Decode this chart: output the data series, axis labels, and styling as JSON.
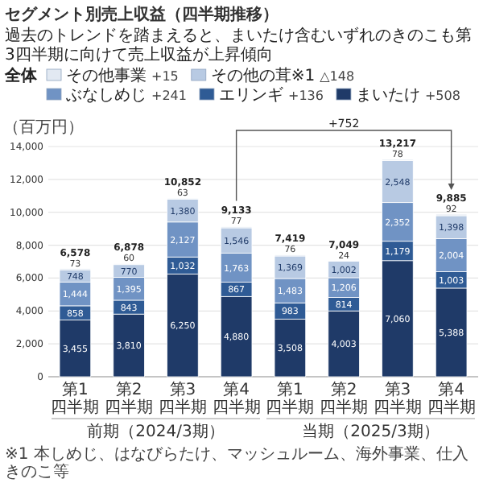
{
  "chart_data": {
    "type": "bar",
    "stacked": true,
    "title": "セグメント別売上収益（四半期推移）",
    "subtitle": "過去のトレンドを踏まえると、まいたけ含むいずれのきのこも第3四半期に向けて売上収益が上昇傾向",
    "ylabel": "（百万円）",
    "legend_title": "全体",
    "categories": [
      "第1四半期",
      "第2四半期",
      "第3四半期",
      "第4四半期",
      "第1四半期",
      "第2四半期",
      "第3四半期",
      "第4四半期"
    ],
    "series": [
      {
        "name": "まいたけ",
        "color": "#1f3a68",
        "values": [
          3455,
          3810,
          6250,
          4880,
          3508,
          4003,
          7060,
          5388
        ],
        "value_labels": [
          "3,455",
          "3,810",
          "6,250",
          "4,880",
          "3,508",
          "4,003",
          "7,060",
          "5,388"
        ]
      },
      {
        "name": "エリンギ",
        "color": "#2f5b95",
        "values": [
          858,
          843,
          1032,
          867,
          983,
          814,
          1179,
          1003
        ],
        "value_labels": [
          "858",
          "843",
          "1,032",
          "867",
          "983",
          "814",
          "1,179",
          "1,003"
        ]
      },
      {
        "name": "ぶなしめじ",
        "color": "#7093c4",
        "values": [
          1444,
          1395,
          2127,
          1763,
          1483,
          1206,
          2352,
          2004
        ],
        "value_labels": [
          "1,444",
          "1,395",
          "2,127",
          "1,763",
          "1,483",
          "1,206",
          "2,352",
          "2,004"
        ]
      },
      {
        "name": "その他の茸※1",
        "color": "#b8cae3",
        "values": [
          748,
          770,
          1380,
          1546,
          1369,
          1002,
          2548,
          1398
        ],
        "value_labels": [
          "748",
          "770",
          "1,380",
          "1,546",
          "1,369",
          "1,002",
          "2,548",
          "1,398"
        ]
      },
      {
        "name": "その他事業",
        "color": "#e2e9f2",
        "values": [
          73,
          60,
          63,
          77,
          76,
          24,
          78,
          92
        ],
        "value_labels": [
          "73",
          "60",
          "63",
          "77",
          "76",
          "24",
          "78",
          "92"
        ]
      }
    ],
    "totals": [
      "6,578",
      "6,878",
      "10,852",
      "9,133",
      "7,419",
      "7,049",
      "13,217",
      "9,885"
    ],
    "ylim": [
      0,
      14000
    ],
    "yticks": [
      0,
      {
        "value": 2000,
        "label": "2,000"
      },
      {
        "value": 4000,
        "label": "4,000"
      },
      {
        "value": 6000,
        "label": "6,000"
      },
      {
        "value": 8000,
        "label": "8,000"
      },
      {
        "value": 10000,
        "label": "10,000"
      },
      {
        "value": 12000,
        "label": "12,000"
      },
      {
        "value": 14000,
        "label": "14,000"
      }
    ],
    "grid": "y",
    "legend": "top",
    "annotations": [
      "前期（2024/3期）",
      "当期（2025/3期）",
      "+752",
      "+508",
      "+136",
      "+241",
      "△148",
      "+15",
      "※1 本しめじ、はなびらたけ、マッシュルーム、海外事業、仕入きのこ等"
    ]
  }
}
